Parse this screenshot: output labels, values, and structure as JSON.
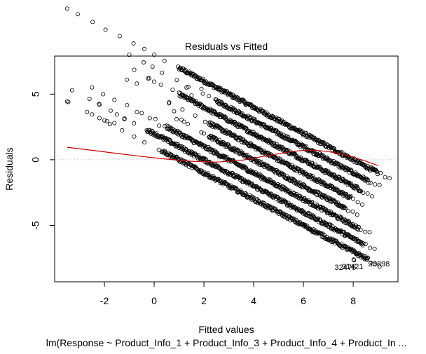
{
  "chart_data": {
    "type": "scatter",
    "title": "Residuals vs Fitted",
    "xlabel": "Fitted values",
    "ylabel": "Residuals",
    "caption": "lm(Response ~ Product_Info_1 + Product_Info_3 + Product_Info_4 + Product_In ...",
    "xlim": [
      -4.0,
      9.8
    ],
    "ylim": [
      -9.3,
      7.9
    ],
    "x_ticks": [
      {
        "value": -2,
        "label": "-2"
      },
      {
        "value": 0,
        "label": "0"
      },
      {
        "value": 2,
        "label": "2"
      },
      {
        "value": 4,
        "label": "4"
      },
      {
        "value": 6,
        "label": "6"
      },
      {
        "value": 8,
        "label": "8"
      }
    ],
    "y_ticks": [
      {
        "value": -5,
        "label": "-5"
      },
      {
        "value": 0,
        "label": "0"
      },
      {
        "value": 5,
        "label": "5"
      }
    ],
    "zero_line": {
      "y": 0,
      "color": "#b3b3b3"
    },
    "point_color": "#000000",
    "bands": [
      {
        "response": 8,
        "x_start": -3.5,
        "x_end": 9.0,
        "density_start": 1.0
      },
      {
        "response": 7,
        "x_start": -1.0,
        "x_end": 8.6,
        "density_start": 2.5
      },
      {
        "response": 6,
        "x_start": -0.8,
        "x_end": 8.3,
        "density_start": 1.0
      },
      {
        "response": 5,
        "x_start": 0.6,
        "x_end": 7.9,
        "density_start": 2.2
      },
      {
        "response": 4,
        "x_start": 0.9,
        "x_end": 7.7,
        "density_start": 2.2
      },
      {
        "response": 3,
        "x_start": -2.5,
        "x_end": 8.2,
        "density_start": 0.5
      },
      {
        "response": 2,
        "x_start": -2.6,
        "x_end": 8.4,
        "density_start": -0.3
      },
      {
        "response": 1,
        "x_start": -2.2,
        "x_end": 8.6,
        "density_start": 0.3
      }
    ],
    "outliers": [
      {
        "x": -3.5,
        "y": 4.45
      },
      {
        "x": -3.45,
        "y": 4.4
      },
      {
        "x": -3.3,
        "y": 5.3
      },
      {
        "x": -2.7,
        "y": 3.65
      },
      {
        "x": -2.5,
        "y": 3.45
      },
      {
        "x": -2.2,
        "y": 4.2
      },
      {
        "x": -1.1,
        "y": 6.1
      },
      {
        "x": -0.7,
        "y": 5.8
      },
      {
        "x": -0.2,
        "y": 6.2
      },
      {
        "x": 0.0,
        "y": 5.95
      },
      {
        "x": -1.5,
        "y": 3.45
      },
      {
        "x": -1.2,
        "y": 3.1
      },
      {
        "x": -0.5,
        "y": 3.55
      },
      {
        "x": 0.05,
        "y": 3.1
      },
      {
        "x": 0.2,
        "y": 2.6
      },
      {
        "x": 0.6,
        "y": 4.3
      },
      {
        "x": 0.8,
        "y": 3.7
      },
      {
        "x": 1.1,
        "y": 3.05
      },
      {
        "x": 1.3,
        "y": 5.5
      },
      {
        "x": 1.5,
        "y": 4.9
      },
      {
        "x": 1.9,
        "y": 5.4
      },
      {
        "x": 2.2,
        "y": 4.85
      },
      {
        "x": 1.2,
        "y": 2.9
      },
      {
        "x": 2.0,
        "y": 2.0
      },
      {
        "x": 2.6,
        "y": 5.4
      },
      {
        "x": -2.0,
        "y": 3.0
      },
      {
        "x": -1.9,
        "y": 2.95
      },
      {
        "x": -1.6,
        "y": 2.8
      },
      {
        "x": 3.2,
        "y": 0.9
      },
      {
        "x": 3.9,
        "y": 1.2
      }
    ],
    "labeled_points": [
      {
        "id": "32475",
        "label": "32475",
        "x": 8.02,
        "y": -7.6
      },
      {
        "id": "31421",
        "label": "31421",
        "x": 8.03,
        "y": -7.65
      },
      {
        "id": "33898",
        "label": "33898",
        "x": 8.55,
        "y": -7.6
      }
    ],
    "smooth": {
      "color": "#cc0000",
      "x": [
        -3.5,
        -2.5,
        -1.5,
        -0.5,
        0.5,
        1.5,
        2.5,
        3.5,
        4.5,
        5.5,
        6.0,
        6.5,
        7.0,
        7.5,
        8.0,
        8.5,
        9.0
      ],
      "y": [
        0.95,
        0.72,
        0.48,
        0.25,
        0.05,
        -0.12,
        -0.18,
        -0.05,
        0.3,
        0.62,
        0.72,
        0.72,
        0.62,
        0.45,
        0.2,
        -0.1,
        -0.45
      ]
    }
  }
}
